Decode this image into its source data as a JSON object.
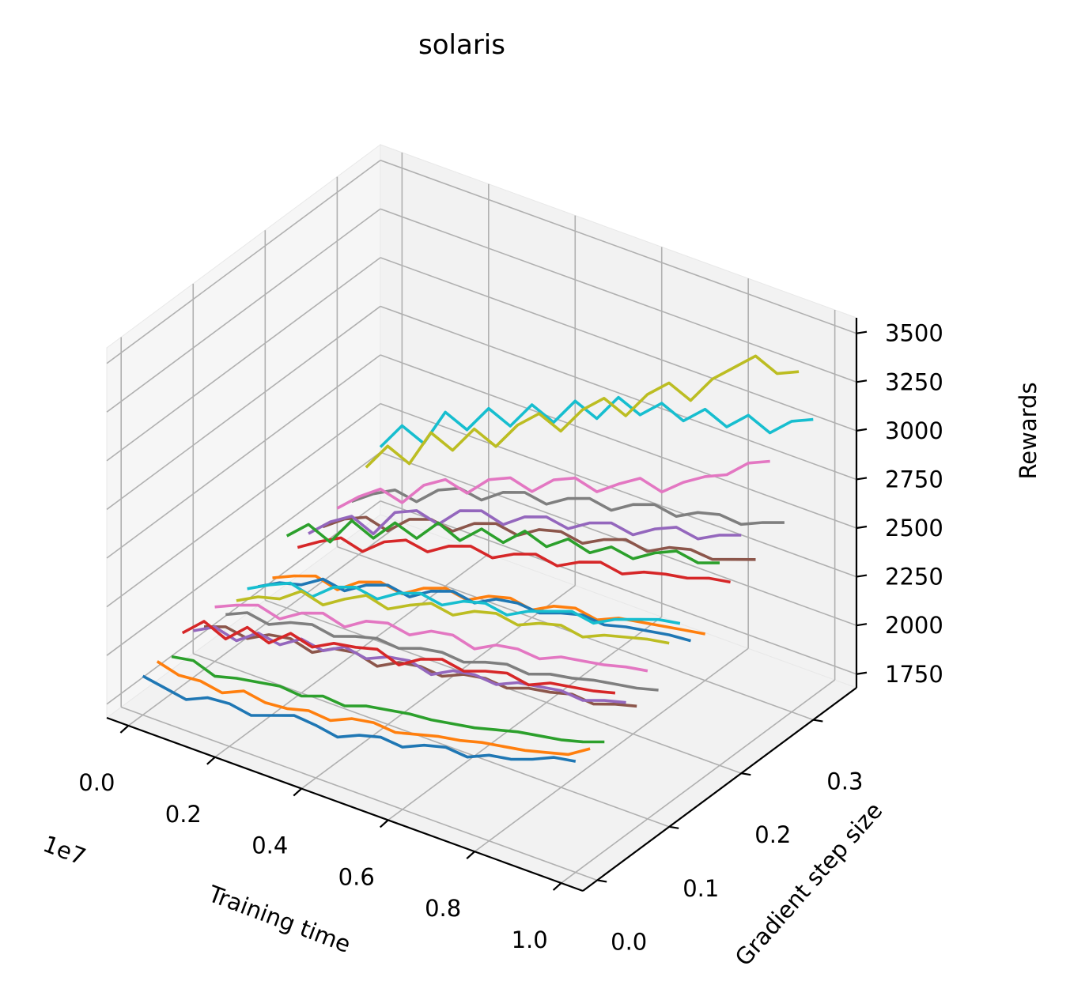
{
  "chart_data": {
    "type": "line",
    "projection": "3d",
    "title": "solaris",
    "xlabel": "Training time",
    "ylabel": "Gradient step size",
    "zlabel": "Rewards",
    "x_offset_label": "1e7",
    "x_ticks": [
      "0.0",
      "0.2",
      "0.4",
      "0.6",
      "0.8",
      "1.0"
    ],
    "y_ticks": [
      "0.0",
      "0.1",
      "0.2",
      "0.3"
    ],
    "z_ticks": [
      "1750",
      "2000",
      "2250",
      "2500",
      "2750",
      "3000",
      "3250",
      "3500"
    ],
    "xlim": [
      -0.05,
      1.05
    ],
    "ylim": [
      -0.02,
      0.36
    ],
    "zlim": [
      1680,
      3580
    ],
    "grid": true,
    "colors": [
      "#1f77b4",
      "#ff7f0e",
      "#2ca02c",
      "#d62728",
      "#9467bd",
      "#8c564b",
      "#e377c2",
      "#7f7f7f",
      "#bcbd22",
      "#17becf"
    ],
    "series": [
      {
        "step": 0.0,
        "x": [
          0.0,
          0.05,
          0.1,
          0.15,
          0.2,
          0.25,
          0.3,
          0.35,
          0.4,
          0.45,
          0.5,
          0.55,
          0.6,
          0.65,
          0.7,
          0.75,
          0.8,
          0.85,
          0.9,
          0.95,
          1.0
        ],
        "values": [
          1880,
          1860,
          1840,
          1890,
          1900,
          1880,
          1920,
          1960,
          1950,
          1930,
          1980,
          2010,
          2000,
          2050,
          2080,
          2070,
          2120,
          2140,
          2180,
          2230,
          2250
        ]
      },
      {
        "step": 0.02,
        "x": [
          0.0,
          0.05,
          0.1,
          0.15,
          0.2,
          0.25,
          0.3,
          0.35,
          0.4,
          0.45,
          0.5,
          0.55,
          0.6,
          0.65,
          0.7,
          0.75,
          0.8,
          0.85,
          0.9,
          0.95,
          1.0
        ],
        "values": [
          1900,
          1870,
          1880,
          1860,
          1910,
          1890,
          1900,
          1930,
          1920,
          1970,
          1990,
          1980,
          2010,
          2040,
          2060,
          2090,
          2110,
          2130,
          2160,
          2190,
          2260
        ]
      },
      {
        "step": 0.04,
        "x": [
          0.0,
          0.05,
          0.1,
          0.15,
          0.2,
          0.25,
          0.3,
          0.35,
          0.4,
          0.45,
          0.5,
          0.55,
          0.6,
          0.65,
          0.7,
          0.75,
          0.8,
          0.85,
          0.9,
          0.95,
          1.0
        ],
        "values": [
          1870,
          1890,
          1850,
          1880,
          1900,
          1920,
          1910,
          1950,
          1940,
          1980,
          2000,
          2020,
          2030,
          2050,
          2070,
          2100,
          2130,
          2150,
          2170,
          2200,
          2240
        ]
      },
      {
        "step": 0.055,
        "x": [
          0.0,
          0.05,
          0.1,
          0.15,
          0.2,
          0.25,
          0.3,
          0.35,
          0.4,
          0.45,
          0.5,
          0.55,
          0.6,
          0.65,
          0.7,
          0.75,
          0.8,
          0.85,
          0.9,
          0.95,
          1.0
        ],
        "values": [
          1950,
          2050,
          2000,
          2100,
          2060,
          2150,
          2120,
          2180,
          2200,
          2230,
          2190,
          2260,
          2300,
          2280,
          2320,
          2350,
          2330,
          2380,
          2400,
          2420,
          2450
        ]
      },
      {
        "step": 0.07,
        "x": [
          0.0,
          0.05,
          0.1,
          0.15,
          0.2,
          0.25,
          0.3,
          0.35,
          0.4,
          0.45,
          0.5,
          0.55,
          0.6,
          0.65,
          0.7,
          0.75,
          0.8,
          0.85,
          0.9,
          0.95,
          1.0
        ],
        "values": [
          1920,
          1980,
          1950,
          2030,
          2010,
          2080,
          2060,
          2120,
          2100,
          2150,
          2170,
          2140,
          2200,
          2220,
          2210,
          2260,
          2280,
          2300,
          2290,
          2330,
          2360
        ]
      },
      {
        "step": 0.085,
        "x": [
          0.0,
          0.05,
          0.1,
          0.15,
          0.2,
          0.25,
          0.3,
          0.35,
          0.4,
          0.45,
          0.5,
          0.55,
          0.6,
          0.65,
          0.7,
          0.75,
          0.8,
          0.85,
          0.9,
          0.95,
          1.0
        ],
        "values": [
          1900,
          1940,
          1920,
          1980,
          2000,
          1970,
          2030,
          2050,
          2020,
          2080,
          2100,
          2090,
          2140,
          2160,
          2150,
          2190,
          2210,
          2240,
          2230,
          2270,
          2300
        ]
      },
      {
        "step": 0.1,
        "x": [
          0.0,
          0.05,
          0.1,
          0.15,
          0.2,
          0.25,
          0.3,
          0.35,
          0.4,
          0.45,
          0.5,
          0.55,
          0.6,
          0.65,
          0.7,
          0.75,
          0.8,
          0.85,
          0.9,
          0.95,
          1.0
        ],
        "values": [
          1960,
          2010,
          2050,
          2020,
          2090,
          2130,
          2100,
          2170,
          2200,
          2180,
          2240,
          2260,
          2230,
          2290,
          2310,
          2300,
          2350,
          2370,
          2390,
          2420,
          2440
        ]
      },
      {
        "step": 0.115,
        "x": [
          0.0,
          0.05,
          0.1,
          0.15,
          0.2,
          0.25,
          0.3,
          0.35,
          0.4,
          0.45,
          0.5,
          0.55,
          0.6,
          0.65,
          0.7,
          0.75,
          0.8,
          0.85,
          0.9,
          0.95,
          1.0
        ],
        "values": [
          1880,
          1930,
          1910,
          1960,
          1990,
          1970,
          2010,
          2040,
          2030,
          2070,
          2090,
          2080,
          2120,
          2150,
          2140,
          2180,
          2200,
          2230,
          2250,
          2270,
          2300
        ]
      },
      {
        "step": 0.13,
        "x": [
          0.0,
          0.05,
          0.1,
          0.15,
          0.2,
          0.25,
          0.3,
          0.35,
          0.4,
          0.45,
          0.5,
          0.55,
          0.6,
          0.65,
          0.7,
          0.75,
          0.8,
          0.85,
          0.9,
          0.95,
          1.0
        ],
        "values": [
          1910,
          1970,
          2000,
          2080,
          2050,
          2120,
          2180,
          2150,
          2210,
          2260,
          2240,
          2300,
          2330,
          2310,
          2360,
          2390,
          2370,
          2420,
          2450,
          2480,
          2500
        ]
      },
      {
        "step": 0.145,
        "x": [
          0.0,
          0.05,
          0.1,
          0.15,
          0.2,
          0.25,
          0.3,
          0.35,
          0.4,
          0.45,
          0.5,
          0.55,
          0.6,
          0.65,
          0.7,
          0.75,
          0.8,
          0.85,
          0.9,
          0.95,
          1.0
        ],
        "values": [
          1930,
          1990,
          2040,
          2010,
          2100,
          2140,
          2120,
          2190,
          2230,
          2210,
          2270,
          2300,
          2280,
          2340,
          2380,
          2420,
          2400,
          2460,
          2500,
          2540,
          2560
        ]
      },
      {
        "step": 0.16,
        "x": [
          0.0,
          0.05,
          0.1,
          0.15,
          0.2,
          0.25,
          0.3,
          0.35,
          0.4,
          0.45,
          0.5,
          0.55,
          0.6,
          0.65,
          0.7,
          0.75,
          0.8,
          0.85,
          0.9,
          0.95,
          1.0
        ],
        "values": [
          1900,
          1960,
          1990,
          2060,
          2040,
          2110,
          2150,
          2130,
          2200,
          2240,
          2220,
          2280,
          2300,
          2290,
          2330,
          2360,
          2350,
          2380,
          2400,
          2420,
          2430
        ]
      },
      {
        "step": 0.18,
        "x": [
          0.0,
          0.05,
          0.1,
          0.15,
          0.2,
          0.25,
          0.3,
          0.35,
          0.4,
          0.45,
          0.5,
          0.55,
          0.6,
          0.65,
          0.7,
          0.75,
          0.8,
          0.85,
          0.9,
          0.95,
          1.0
        ],
        "values": [
          1890,
          1940,
          1980,
          1950,
          2030,
          2070,
          2050,
          2120,
          2160,
          2140,
          2200,
          2230,
          2210,
          2270,
          2300,
          2280,
          2330,
          2350,
          2370,
          2390,
          2410
        ]
      },
      {
        "step": 0.2,
        "x": [
          0.0,
          0.05,
          0.1,
          0.15,
          0.2,
          0.25,
          0.3,
          0.35,
          0.4,
          0.45,
          0.5,
          0.55,
          0.6,
          0.65,
          0.7,
          0.75,
          0.8,
          0.85,
          0.9,
          0.95,
          1.0
        ],
        "values": [
          2050,
          2150,
          2100,
          2250,
          2200,
          2320,
          2280,
          2400,
          2350,
          2450,
          2420,
          2520,
          2480,
          2560,
          2530,
          2600,
          2580,
          2650,
          2700,
          2680,
          2720
        ]
      },
      {
        "step": 0.215,
        "x": [
          0.0,
          0.05,
          0.1,
          0.15,
          0.2,
          0.25,
          0.3,
          0.35,
          0.4,
          0.45,
          0.5,
          0.55,
          0.6,
          0.65,
          0.7,
          0.75,
          0.8,
          0.85,
          0.9,
          0.95,
          1.0
        ],
        "values": [
          1950,
          2020,
          2080,
          2050,
          2140,
          2190,
          2170,
          2240,
          2280,
          2260,
          2320,
          2360,
          2340,
          2400,
          2440,
          2420,
          2470,
          2500,
          2520,
          2560,
          2580
        ]
      },
      {
        "step": 0.23,
        "x": [
          0.0,
          0.05,
          0.1,
          0.15,
          0.2,
          0.25,
          0.3,
          0.35,
          0.4,
          0.45,
          0.5,
          0.55,
          0.6,
          0.65,
          0.7,
          0.75,
          0.8,
          0.85,
          0.9,
          0.95,
          1.0
        ],
        "values": [
          1980,
          2080,
          2150,
          2100,
          2250,
          2300,
          2270,
          2380,
          2420,
          2390,
          2470,
          2510,
          2490,
          2560,
          2600,
          2580,
          2650,
          2700,
          2680,
          2740,
          2780
        ]
      },
      {
        "step": 0.25,
        "x": [
          0.0,
          0.05,
          0.1,
          0.15,
          0.2,
          0.25,
          0.3,
          0.35,
          0.4,
          0.45,
          0.5,
          0.55,
          0.6,
          0.65,
          0.7,
          0.75,
          0.8,
          0.85,
          0.9,
          0.95,
          1.0
        ],
        "values": [
          1960,
          2040,
          2090,
          2060,
          2160,
          2200,
          2180,
          2260,
          2300,
          2280,
          2350,
          2380,
          2360,
          2420,
          2460,
          2440,
          2500,
          2530,
          2520,
          2560,
          2600
        ]
      },
      {
        "step": 0.27,
        "x": [
          0.0,
          0.05,
          0.1,
          0.15,
          0.2,
          0.25,
          0.3,
          0.35,
          0.4,
          0.45,
          0.5,
          0.55,
          0.6,
          0.65,
          0.7,
          0.75,
          0.8,
          0.85,
          0.9,
          0.95,
          1.0
        ],
        "values": [
          2000,
          2100,
          2180,
          2150,
          2280,
          2350,
          2320,
          2430,
          2480,
          2450,
          2550,
          2600,
          2570,
          2650,
          2720,
          2690,
          2780,
          2850,
          2900,
          3000,
          3050
        ]
      },
      {
        "step": 0.29,
        "x": [
          0.0,
          0.05,
          0.1,
          0.15,
          0.2,
          0.25,
          0.3,
          0.35,
          0.4,
          0.45,
          0.5,
          0.55,
          0.6,
          0.65,
          0.7,
          0.75,
          0.8,
          0.85,
          0.9,
          0.95,
          1.0
        ],
        "values": [
          1980,
          2060,
          2120,
          2100,
          2200,
          2250,
          2230,
          2310,
          2350,
          2330,
          2400,
          2440,
          2420,
          2490,
          2530,
          2510,
          2570,
          2600,
          2590,
          2640,
          2680
        ]
      },
      {
        "step": 0.31,
        "x": [
          0.0,
          0.05,
          0.1,
          0.15,
          0.2,
          0.25,
          0.3,
          0.35,
          0.4,
          0.45,
          0.5,
          0.55,
          0.6,
          0.65,
          0.7,
          0.75,
          0.8,
          0.85,
          0.9,
          0.95,
          1.0
        ],
        "values": [
          2100,
          2250,
          2200,
          2400,
          2350,
          2500,
          2450,
          2600,
          2700,
          2650,
          2800,
          2900,
          2850,
          3000,
          3100,
          3050,
          3200,
          3300,
          3400,
          3350,
          3400
        ]
      },
      {
        "step": 0.33,
        "x": [
          0.0,
          0.05,
          0.1,
          0.15,
          0.2,
          0.25,
          0.3,
          0.35,
          0.4,
          0.45,
          0.5,
          0.55,
          0.6,
          0.65,
          0.7,
          0.75,
          0.8,
          0.85,
          0.9,
          0.95,
          1.0
        ],
        "values": [
          2150,
          2300,
          2250,
          2450,
          2400,
          2550,
          2500,
          2650,
          2600,
          2750,
          2700,
          2850,
          2800,
          2900,
          2850,
          2950,
          2900,
          3000,
          2950,
          3050,
          3100
        ]
      }
    ]
  }
}
